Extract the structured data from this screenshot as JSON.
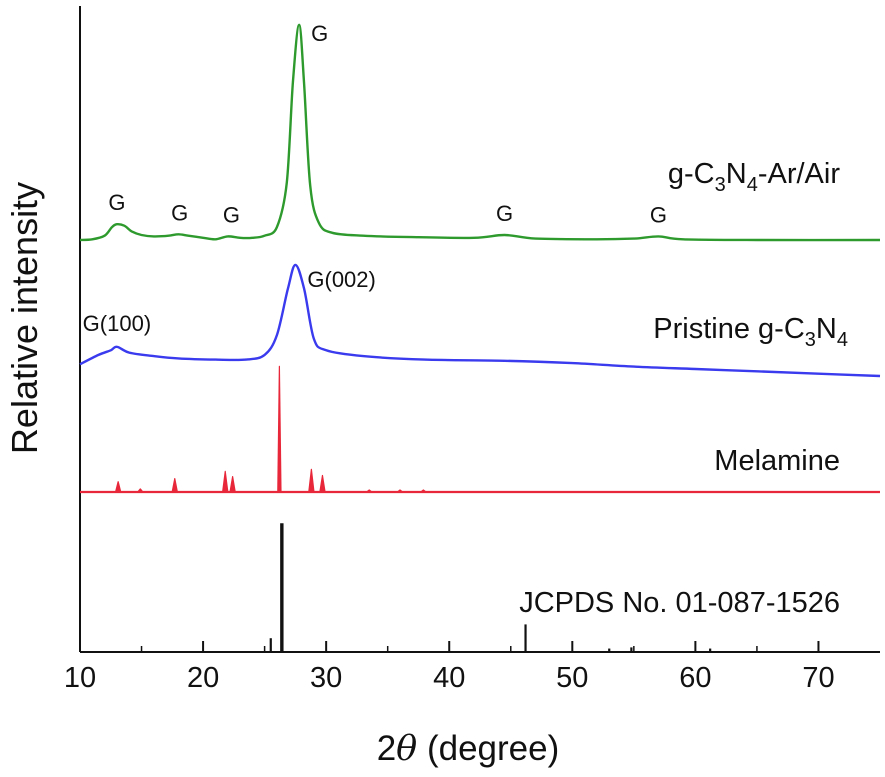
{
  "chart_data": {
    "type": "line",
    "title": "",
    "xlabel": "2θ (degree)",
    "xlabel_parts": {
      "prefix": "2",
      "theta": "θ",
      "suffix": " (degree)"
    },
    "ylabel": "Relative intensity",
    "xlim": [
      10,
      75
    ],
    "xticks": [
      10,
      20,
      30,
      40,
      50,
      60,
      70
    ],
    "grid": false,
    "series": [
      {
        "name": "g-C3N4-Ar/Air",
        "label_parts": [
          "g-C",
          "3",
          "N",
          "4",
          "-Ar/Air"
        ],
        "color": "#2e9a2e",
        "style": "smooth",
        "baseline": 0,
        "points": [
          [
            10,
            0
          ],
          [
            11,
            0.5
          ],
          [
            12,
            3
          ],
          [
            12.6,
            9
          ],
          [
            13,
            11
          ],
          [
            13.6,
            10
          ],
          [
            14.2,
            6
          ],
          [
            15,
            3.5
          ],
          [
            16,
            2.5
          ],
          [
            17.2,
            3
          ],
          [
            18,
            4
          ],
          [
            18.8,
            3
          ],
          [
            20,
            1.5
          ],
          [
            21,
            0.5
          ],
          [
            22,
            2.5
          ],
          [
            23,
            1.5
          ],
          [
            24,
            1.5
          ],
          [
            25,
            3
          ],
          [
            26,
            9
          ],
          [
            26.8,
            40
          ],
          [
            27.3,
            110
          ],
          [
            27.8,
            150
          ],
          [
            28.2,
            110
          ],
          [
            28.7,
            38
          ],
          [
            29.4,
            12
          ],
          [
            30.5,
            5
          ],
          [
            33,
            3
          ],
          [
            37,
            2
          ],
          [
            42,
            1.5
          ],
          [
            44.5,
            3.5
          ],
          [
            47,
            1
          ],
          [
            52,
            0.5
          ],
          [
            55,
            1
          ],
          [
            57,
            2.5
          ],
          [
            59,
            0.5
          ],
          [
            65,
            0
          ],
          [
            75,
            0
          ]
        ]
      },
      {
        "name": "Pristine g-C3N4",
        "label_parts": [
          "Pristine g-C",
          "3",
          "N",
          "4"
        ],
        "color": "#3a3aee",
        "style": "smooth",
        "baseline": 0,
        "points": [
          [
            10,
            10
          ],
          [
            11.5,
            18
          ],
          [
            12.5,
            22
          ],
          [
            13,
            25
          ],
          [
            14,
            20
          ],
          [
            16,
            17
          ],
          [
            18,
            15
          ],
          [
            21,
            14
          ],
          [
            23.5,
            14
          ],
          [
            25,
            18
          ],
          [
            26,
            35
          ],
          [
            26.9,
            75
          ],
          [
            27.5,
            95
          ],
          [
            28.2,
            75
          ],
          [
            29,
            32
          ],
          [
            30,
            22
          ],
          [
            33,
            17
          ],
          [
            38,
            14
          ],
          [
            44.5,
            13
          ],
          [
            50,
            11
          ],
          [
            55,
            8
          ],
          [
            60,
            6
          ],
          [
            65,
            4
          ],
          [
            70,
            2
          ],
          [
            75,
            0
          ]
        ]
      },
      {
        "name": "Melamine",
        "label_parts": [
          "Melamine"
        ],
        "color": "#e8283a",
        "style": "peaks",
        "baseline": 0,
        "peaks": [
          [
            13.1,
            10
          ],
          [
            14.9,
            3
          ],
          [
            17.7,
            13
          ],
          [
            21.8,
            20
          ],
          [
            22.4,
            15
          ],
          [
            26.2,
            122
          ],
          [
            28.8,
            22
          ],
          [
            29.7,
            16
          ],
          [
            33.5,
            2
          ],
          [
            36,
            2
          ],
          [
            37.9,
            2
          ]
        ]
      },
      {
        "name": "JCPDS No. 01-087-1526",
        "label_parts": [
          "JCPDS No. 01-087-1526"
        ],
        "color": "#111111",
        "style": "sticks",
        "baseline": 0,
        "sticks": [
          [
            25.5,
            12
          ],
          [
            26.4,
            112
          ],
          [
            46.2,
            24
          ],
          [
            53,
            3
          ],
          [
            54.8,
            4
          ],
          [
            61.2,
            3
          ]
        ]
      }
    ],
    "annotations": [
      {
        "text": "G",
        "series": "g-C3N4-Ar/Air",
        "x": 13.0
      },
      {
        "text": "G",
        "series": "g-C3N4-Ar/Air",
        "x": 18.1
      },
      {
        "text": "G",
        "series": "g-C3N4-Ar/Air",
        "x": 22.3
      },
      {
        "text": "G",
        "series": "g-C3N4-Ar/Air",
        "x": 27.8
      },
      {
        "text": "G",
        "series": "g-C3N4-Ar/Air",
        "x": 44.5
      },
      {
        "text": "G",
        "series": "g-C3N4-Ar/Air",
        "x": 57.0
      },
      {
        "text": "G(100)",
        "series": "Pristine g-C3N4",
        "x": 13.0
      },
      {
        "text": "G(002)",
        "series": "Pristine g-C3N4",
        "x": 27.5
      }
    ]
  }
}
